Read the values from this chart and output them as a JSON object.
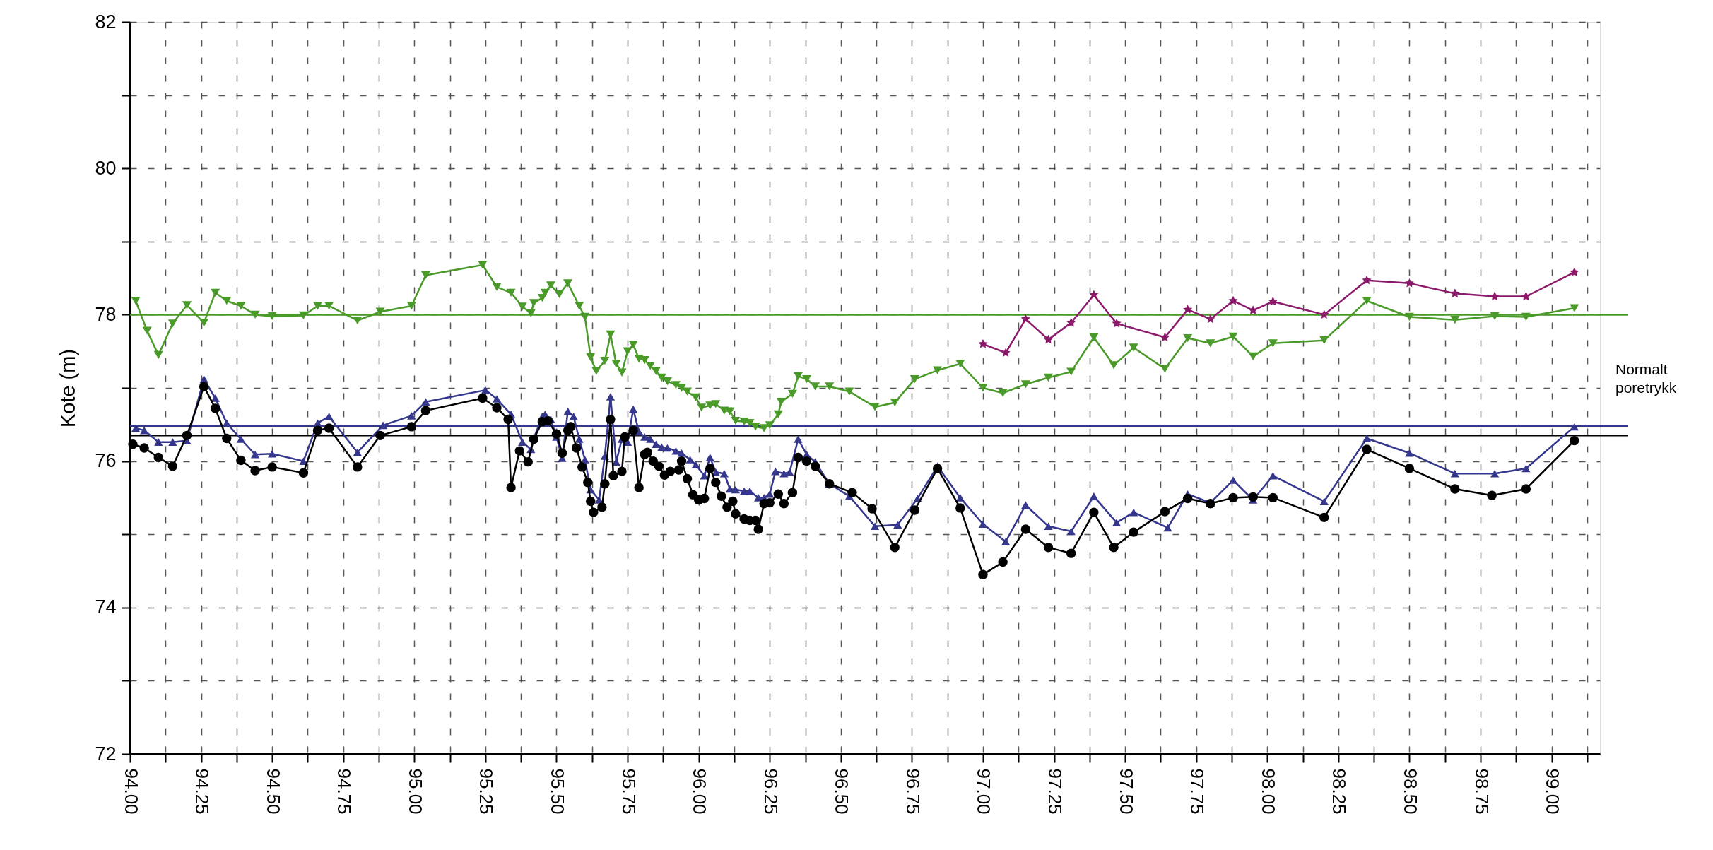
{
  "chart_data": {
    "type": "line",
    "ylabel": "Kote (m)",
    "xlim": [
      94,
      99.17
    ],
    "ylim": [
      72,
      82
    ],
    "xticks": [
      {
        "value": 94,
        "label": "94.00"
      },
      {
        "value": 94.125,
        "label": null
      },
      {
        "value": 94.25,
        "label": "94.25"
      },
      {
        "value": 94.375,
        "label": null
      },
      {
        "value": 94.5,
        "label": "94.50"
      },
      {
        "value": 94.625,
        "label": null
      },
      {
        "value": 94.75,
        "label": "94.75"
      },
      {
        "value": 94.875,
        "label": null
      },
      {
        "value": 95,
        "label": "95.00"
      },
      {
        "value": 95.125,
        "label": null
      },
      {
        "value": 95.25,
        "label": "95.25"
      },
      {
        "value": 95.375,
        "label": null
      },
      {
        "value": 95.5,
        "label": "95.50"
      },
      {
        "value": 95.625,
        "label": null
      },
      {
        "value": 95.75,
        "label": "95.75"
      },
      {
        "value": 95.875,
        "label": null
      },
      {
        "value": 96,
        "label": "96.00"
      },
      {
        "value": 96.125,
        "label": null
      },
      {
        "value": 96.25,
        "label": "96.25"
      },
      {
        "value": 96.375,
        "label": null
      },
      {
        "value": 96.5,
        "label": "96.50"
      },
      {
        "value": 96.625,
        "label": null
      },
      {
        "value": 96.75,
        "label": "96.75"
      },
      {
        "value": 96.875,
        "label": null
      },
      {
        "value": 97,
        "label": "97.00"
      },
      {
        "value": 97.125,
        "label": null
      },
      {
        "value": 97.25,
        "label": "97.25"
      },
      {
        "value": 97.375,
        "label": null
      },
      {
        "value": 97.5,
        "label": "97.50"
      },
      {
        "value": 97.625,
        "label": null
      },
      {
        "value": 97.75,
        "label": "97.75"
      },
      {
        "value": 97.875,
        "label": null
      },
      {
        "value": 98,
        "label": "98.00"
      },
      {
        "value": 98.125,
        "label": null
      },
      {
        "value": 98.25,
        "label": "98.25"
      },
      {
        "value": 98.375,
        "label": null
      },
      {
        "value": 98.5,
        "label": "98.50"
      },
      {
        "value": 98.625,
        "label": null
      },
      {
        "value": 98.75,
        "label": "98.75"
      },
      {
        "value": 98.875,
        "label": null
      },
      {
        "value": 99,
        "label": "99.00"
      },
      {
        "value": 99.125,
        "label": null
      }
    ],
    "yticks": [
      72,
      {
        "value": 73,
        "label": null
      },
      74,
      {
        "value": 75,
        "label": null
      },
      76,
      {
        "value": 77,
        "label": null
      },
      78,
      {
        "value": 79,
        "label": null
      },
      80,
      {
        "value": 81,
        "label": null
      },
      82
    ],
    "grid": true,
    "series": [
      {
        "color": "#4a9a2a",
        "marker": "triangle-down",
        "x": [
          94.02,
          94.06,
          94.1,
          94.15,
          94.2,
          94.26,
          94.3,
          94.34,
          94.39,
          94.44,
          94.5,
          94.61,
          94.66,
          94.7,
          94.8,
          94.88,
          94.99,
          95.04,
          95.24,
          95.29,
          95.34,
          95.38,
          95.41,
          95.42,
          95.45,
          95.46,
          95.48,
          95.51,
          95.54,
          95.58,
          95.6,
          95.62,
          95.64,
          95.67,
          95.69,
          95.71,
          95.73,
          95.75,
          95.77,
          95.79,
          95.81,
          95.83,
          95.85,
          95.87,
          95.89,
          95.92,
          95.94,
          95.96,
          95.99,
          96.01,
          96.04,
          96.06,
          96.09,
          96.11,
          96.13,
          96.16,
          96.18,
          96.2,
          96.23,
          96.25,
          96.28,
          96.29,
          96.33,
          96.35,
          96.38,
          96.41,
          96.46,
          96.53,
          96.62,
          96.69,
          96.76,
          96.84,
          96.92,
          97.0,
          97.07,
          97.15,
          97.23,
          97.31,
          97.39,
          97.46,
          97.53,
          97.64,
          97.72,
          97.8,
          97.88,
          97.95,
          98.02,
          98.2,
          98.35,
          98.5,
          98.66,
          98.8,
          98.91,
          99.08
        ],
        "values": [
          78.19,
          77.78,
          77.45,
          77.88,
          78.13,
          77.89,
          78.3,
          78.19,
          78.12,
          78.0,
          77.98,
          77.99,
          78.12,
          78.12,
          77.92,
          78.04,
          78.12,
          78.54,
          78.68,
          78.38,
          78.3,
          78.11,
          78.02,
          78.16,
          78.23,
          78.3,
          78.4,
          78.28,
          78.43,
          78.12,
          77.97,
          77.42,
          77.23,
          77.37,
          77.73,
          77.33,
          77.21,
          77.5,
          77.59,
          77.4,
          77.38,
          77.3,
          77.23,
          77.14,
          77.09,
          77.04,
          77.0,
          76.95,
          76.87,
          76.73,
          76.76,
          76.78,
          76.69,
          76.68,
          76.55,
          76.54,
          76.52,
          76.47,
          76.45,
          76.49,
          76.64,
          76.81,
          76.92,
          77.16,
          77.12,
          77.02,
          77.02,
          76.95,
          76.74,
          76.8,
          77.12,
          77.24,
          77.33,
          77.0,
          76.93,
          77.05,
          77.14,
          77.22,
          77.69,
          77.31,
          77.55,
          77.26,
          77.68,
          77.61,
          77.7,
          77.43,
          77.61,
          77.65,
          78.19,
          77.97,
          77.93,
          77.98,
          77.97,
          78.09
        ]
      },
      {
        "color": "#8b1a6b",
        "marker": "star",
        "x": [
          97.0,
          97.08,
          97.15,
          97.23,
          97.31,
          97.39,
          97.47,
          97.64,
          97.72,
          97.8,
          97.88,
          97.95,
          98.02,
          98.2,
          98.35,
          98.5,
          98.66,
          98.8,
          98.91,
          99.08
        ],
        "values": [
          77.6,
          77.48,
          77.94,
          77.66,
          77.89,
          78.27,
          77.88,
          77.69,
          78.07,
          77.94,
          78.19,
          78.06,
          78.18,
          78.0,
          78.47,
          78.43,
          78.29,
          78.25,
          78.25,
          78.58
        ]
      },
      {
        "color": "#34378c",
        "marker": "triangle",
        "x": [
          94.02,
          94.05,
          94.1,
          94.15,
          94.2,
          94.26,
          94.3,
          94.34,
          94.39,
          94.44,
          94.5,
          94.61,
          94.66,
          94.7,
          94.8,
          94.89,
          94.99,
          95.04,
          95.25,
          95.29,
          95.34,
          95.38,
          95.41,
          95.42,
          95.45,
          95.46,
          95.48,
          95.5,
          95.52,
          95.54,
          95.56,
          95.58,
          95.6,
          95.62,
          95.65,
          95.67,
          95.69,
          95.71,
          95.73,
          95.75,
          95.77,
          95.79,
          95.81,
          95.83,
          95.85,
          95.87,
          95.89,
          95.92,
          95.94,
          95.97,
          95.99,
          96.02,
          96.04,
          96.06,
          96.09,
          96.11,
          96.13,
          96.16,
          96.18,
          96.21,
          96.23,
          96.25,
          96.27,
          96.3,
          96.32,
          96.35,
          96.38,
          96.41,
          96.46,
          96.53,
          96.62,
          96.7,
          96.77,
          96.84,
          96.92,
          97.0,
          97.08,
          97.15,
          97.23,
          97.31,
          97.39,
          97.47,
          97.53,
          97.65,
          97.72,
          97.8,
          97.88,
          97.95,
          98.02,
          98.2,
          98.35,
          98.5,
          98.66,
          98.8,
          98.91,
          99.08
        ],
        "values": [
          76.45,
          76.42,
          76.26,
          76.26,
          76.28,
          77.12,
          76.86,
          76.52,
          76.3,
          76.09,
          76.1,
          76.0,
          76.52,
          76.61,
          76.12,
          76.49,
          76.62,
          76.81,
          76.97,
          76.85,
          76.64,
          76.26,
          76.16,
          76.31,
          76.61,
          76.64,
          76.57,
          76.33,
          76.04,
          76.68,
          76.61,
          76.3,
          76.02,
          75.61,
          75.47,
          76.07,
          76.88,
          75.99,
          76.3,
          76.26,
          76.71,
          76.4,
          76.33,
          76.3,
          76.23,
          76.19,
          76.18,
          76.14,
          76.11,
          76.02,
          75.95,
          75.8,
          76.05,
          75.85,
          75.83,
          75.62,
          75.61,
          75.59,
          75.59,
          75.5,
          75.5,
          75.55,
          75.86,
          75.83,
          75.85,
          76.3,
          76.09,
          75.99,
          75.69,
          75.52,
          75.11,
          75.13,
          75.49,
          75.93,
          75.5,
          75.14,
          74.9,
          75.4,
          75.11,
          75.04,
          75.52,
          75.16,
          75.3,
          75.09,
          75.55,
          75.43,
          75.74,
          75.47,
          75.8,
          75.45,
          76.31,
          76.11,
          75.83,
          75.83,
          75.9,
          76.47
        ]
      },
      {
        "color": "#000000",
        "marker": "circle",
        "x": [
          94.01,
          94.05,
          94.1,
          94.15,
          94.2,
          94.26,
          94.3,
          94.34,
          94.39,
          94.44,
          94.5,
          94.61,
          94.66,
          94.7,
          94.8,
          94.88,
          94.99,
          95.04,
          95.24,
          95.29,
          95.33,
          95.34,
          95.37,
          95.4,
          95.42,
          95.45,
          95.47,
          95.5,
          95.52,
          95.54,
          95.55,
          95.57,
          95.59,
          95.61,
          95.62,
          95.63,
          95.66,
          95.67,
          95.69,
          95.7,
          95.73,
          95.74,
          95.77,
          95.79,
          95.81,
          95.82,
          95.84,
          95.86,
          95.88,
          95.9,
          95.93,
          95.94,
          95.96,
          95.98,
          96.0,
          96.02,
          96.04,
          96.06,
          96.08,
          96.1,
          96.12,
          96.13,
          96.16,
          96.18,
          96.2,
          96.21,
          96.23,
          96.25,
          96.28,
          96.3,
          96.33,
          96.35,
          96.38,
          96.41,
          96.46,
          96.54,
          96.61,
          96.69,
          96.76,
          96.84,
          96.92,
          97.0,
          97.07,
          97.15,
          97.23,
          97.31,
          97.39,
          97.46,
          97.53,
          97.64,
          97.72,
          97.8,
          97.88,
          97.95,
          98.02,
          98.2,
          98.35,
          98.5,
          98.66,
          98.79,
          98.91,
          99.08
        ],
        "values": [
          76.23,
          76.18,
          76.05,
          75.93,
          76.35,
          77.02,
          76.72,
          76.31,
          76.01,
          75.87,
          75.92,
          75.84,
          76.42,
          76.45,
          75.92,
          76.35,
          76.47,
          76.69,
          76.86,
          76.73,
          76.57,
          75.64,
          76.14,
          75.99,
          76.3,
          76.54,
          76.55,
          76.37,
          76.11,
          76.42,
          76.47,
          76.18,
          75.92,
          75.71,
          75.45,
          75.3,
          75.37,
          75.69,
          76.57,
          75.8,
          75.86,
          76.33,
          76.42,
          75.64,
          76.09,
          76.12,
          76.0,
          75.93,
          75.81,
          75.86,
          75.88,
          76.0,
          75.76,
          75.54,
          75.47,
          75.49,
          75.9,
          75.71,
          75.52,
          75.37,
          75.45,
          75.28,
          75.21,
          75.19,
          75.19,
          75.07,
          75.42,
          75.43,
          75.55,
          75.42,
          75.57,
          76.05,
          76.0,
          75.93,
          75.69,
          75.57,
          75.35,
          74.82,
          75.33,
          75.9,
          75.36,
          74.45,
          74.62,
          75.07,
          74.82,
          74.74,
          75.3,
          74.82,
          75.03,
          75.31,
          75.49,
          75.42,
          75.5,
          75.51,
          75.5,
          75.23,
          76.16,
          75.9,
          75.62,
          75.53,
          75.62,
          76.28
        ]
      }
    ],
    "ref_lines": [
      {
        "axis": "y",
        "value": 78.0,
        "color": "#4a9a2a"
      },
      {
        "axis": "y",
        "value": 76.48,
        "color": "#34378c"
      },
      {
        "axis": "y",
        "value": 76.35,
        "color": "#000000"
      }
    ],
    "annotations": [
      "Normalt poretrykk"
    ]
  }
}
